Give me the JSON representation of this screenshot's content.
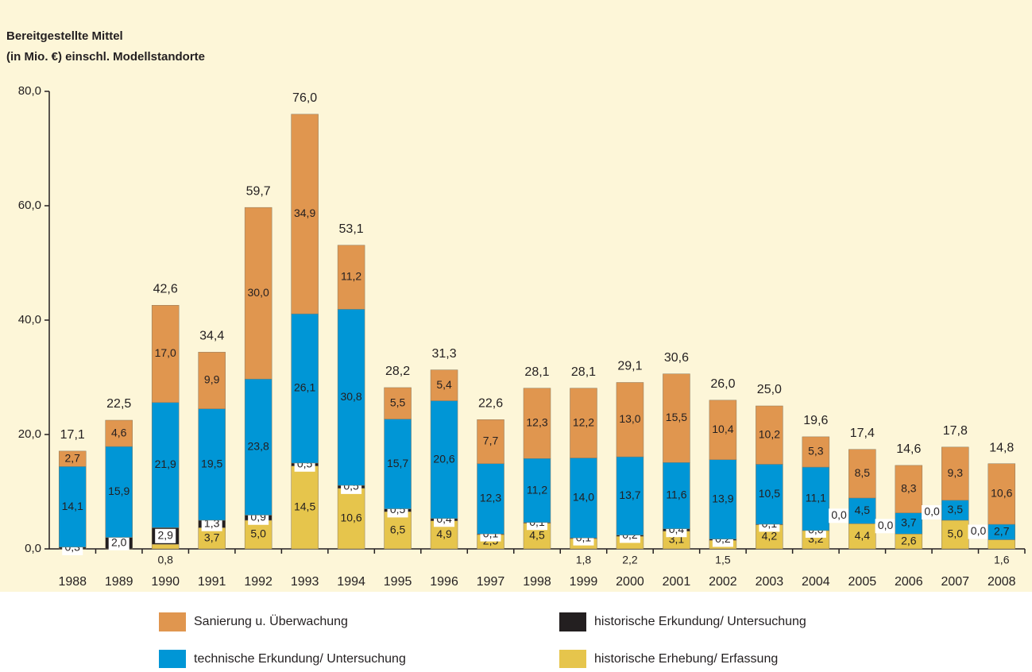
{
  "chart_data": {
    "type": "stacked-bar",
    "title": [
      "Bereitgestellte Mittel",
      "(in Mio. €) einschl. Modellstandorte"
    ],
    "categories": [
      "1988",
      "1989",
      "1990",
      "1991",
      "1992",
      "1993",
      "1994",
      "1995",
      "1996",
      "1997",
      "1998",
      "1999",
      "2000",
      "2001",
      "2002",
      "2003",
      "2004",
      "2005",
      "2006",
      "2007",
      "2008"
    ],
    "series": [
      {
        "name": "historische Erhebung/ Erfassung",
        "color": "#e6c54c",
        "values": [
          0,
          0,
          0.8,
          3.7,
          5.0,
          14.5,
          10.6,
          6.5,
          4.9,
          2.5,
          4.5,
          1.8,
          2.2,
          3.1,
          1.5,
          4.2,
          3.2,
          4.4,
          2.6,
          5.0,
          1.6
        ],
        "value_labels": [
          null,
          null,
          "0,8",
          "3,7",
          "5,0",
          "14,5",
          "10,6",
          "6,5",
          "4,9",
          "2,5",
          "4,5",
          "1,8",
          "2,2",
          "3,1",
          "1,5",
          "4,2",
          "3,2",
          "4,4",
          "2,6",
          "5,0",
          "1,6"
        ]
      },
      {
        "name": "historische Erkundung/ Untersuchung",
        "color": "#231f20",
        "values": [
          0.3,
          2.0,
          2.9,
          1.3,
          0.9,
          0.5,
          0.5,
          0.5,
          0.4,
          0.1,
          0.1,
          0.1,
          0.2,
          0.4,
          0.2,
          0.1,
          0.0,
          0.0,
          0.0,
          0.0,
          0.0
        ],
        "value_labels": [
          "0,3",
          "2,0",
          "2,9",
          "1,3",
          "0,9",
          "0,5",
          "0,5",
          "0,5",
          "0,4",
          "0,1",
          "0,1",
          "0,1",
          "0,2",
          "0,4",
          "0,2",
          "0,1",
          "0,0",
          "0,0",
          "0,0",
          "0,0",
          "0,0"
        ]
      },
      {
        "name": "technische Erkundung/ Untersuchung",
        "color": "#0096d6",
        "values": [
          14.1,
          15.9,
          21.9,
          19.5,
          23.8,
          26.1,
          30.8,
          15.7,
          20.6,
          12.3,
          11.2,
          14.0,
          13.7,
          11.6,
          13.9,
          10.5,
          11.1,
          4.5,
          3.7,
          3.5,
          2.7
        ],
        "value_labels": [
          "14,1",
          "15,9",
          "21,9",
          "19,5",
          "23,8",
          "26,1",
          "30,8",
          "15,7",
          "20,6",
          "12,3",
          "11,2",
          "14,0",
          "13,7",
          "11,6",
          "13,9",
          "10,5",
          "11,1",
          "4,5",
          "3,7",
          "3,5",
          "2,7"
        ]
      },
      {
        "name": "Sanierung u. Überwachung",
        "color": "#e0964f",
        "values": [
          2.7,
          4.6,
          17.0,
          9.9,
          30.0,
          34.9,
          11.2,
          5.5,
          5.4,
          7.7,
          12.3,
          12.2,
          13.0,
          15.5,
          10.4,
          10.2,
          5.3,
          8.5,
          8.3,
          9.3,
          10.6
        ],
        "value_labels": [
          "2,7",
          "4,6",
          "17,0",
          "9,9",
          "30,0",
          "34,9",
          "11,2",
          "5,5",
          "5,4",
          "7,7",
          "12,3",
          "12,2",
          "13,0",
          "15,5",
          "10,4",
          "10,2",
          "5,3",
          "8,5",
          "8,3",
          "9,3",
          "10,6"
        ]
      }
    ],
    "totals": [
      17.1,
      22.5,
      42.6,
      34.4,
      59.7,
      76.0,
      53.1,
      28.2,
      31.3,
      22.6,
      28.1,
      28.1,
      29.1,
      30.6,
      26.0,
      25.0,
      19.6,
      17.4,
      14.6,
      17.8,
      14.8
    ],
    "total_labels": [
      "17,1",
      "22,5",
      "42,6",
      "34,4",
      "59,7",
      "76,0",
      "53,1",
      "28,2",
      "31,3",
      "22,6",
      "28,1",
      "28,1",
      "29,1",
      "30,6",
      "26,0",
      "25,0",
      "19,6",
      "17,4",
      "14,6",
      "17,8",
      "14,8"
    ],
    "ylim": [
      0,
      80
    ],
    "yticks": [
      {
        "value": 0,
        "label": "0,0"
      },
      {
        "value": 20,
        "label": "20,0"
      },
      {
        "value": 40,
        "label": "40,0"
      },
      {
        "value": 60,
        "label": "60,0"
      },
      {
        "value": 80,
        "label": "80,0"
      }
    ],
    "legend_order": [
      3,
      1,
      2,
      0
    ]
  }
}
